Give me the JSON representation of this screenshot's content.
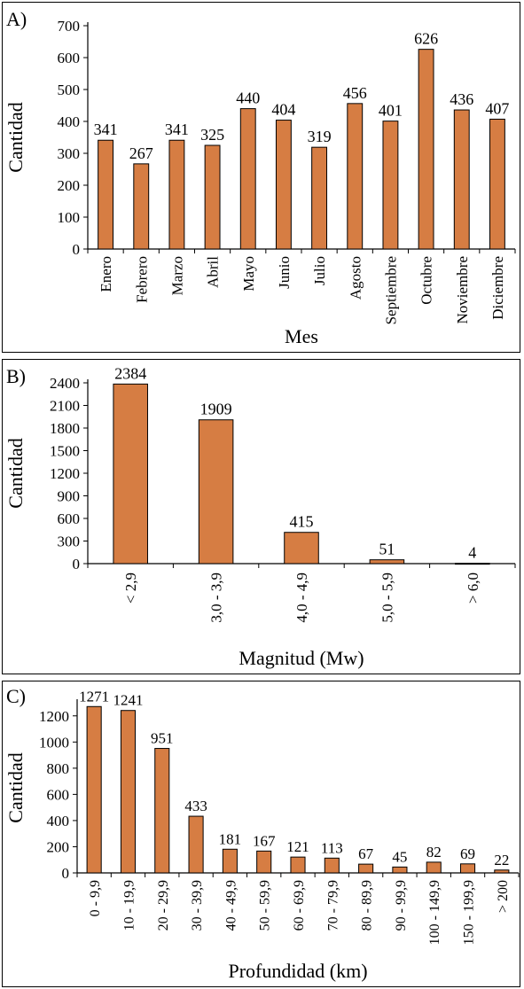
{
  "chart_data": [
    {
      "type": "bar",
      "panel_label": "A)",
      "categories": [
        "Enero",
        "Febrero",
        "Marzo",
        "Abril",
        "Mayo",
        "Junio",
        "Julio",
        "Agosto",
        "Septiembre",
        "Octubre",
        "Noviembre",
        "Diciembre"
      ],
      "values": [
        341,
        267,
        341,
        325,
        440,
        404,
        319,
        456,
        401,
        626,
        436,
        407
      ],
      "xlabel": "Mes",
      "ylabel": "Cantidad",
      "ylim": [
        0,
        700
      ],
      "yticks": [
        0,
        100,
        200,
        300,
        400,
        500,
        600,
        700
      ],
      "grid": false,
      "bar_color": "#d67d43"
    },
    {
      "type": "bar",
      "panel_label": "B)",
      "categories": [
        "< 2,9",
        "3,0 - 3,9",
        "4,0 - 4,9",
        "5,0 - 5,9",
        "> 6,0"
      ],
      "values": [
        2384,
        1909,
        415,
        51,
        4
      ],
      "xlabel": "Magnitud (Mw)",
      "ylabel": "Cantidad",
      "ylim": [
        0,
        2400
      ],
      "yticks": [
        0,
        300,
        600,
        900,
        1200,
        1500,
        1800,
        2100,
        2400
      ],
      "grid": false,
      "bar_color": "#d67d43"
    },
    {
      "type": "bar",
      "panel_label": "C)",
      "categories": [
        "0 - 9,9",
        "10 - 19,9",
        "20 - 29,9",
        "30 - 39,9",
        "40 - 49,9",
        "50 - 59,9",
        "60 - 69,9",
        "70 - 79,9",
        "80 - 89,9",
        "90 - 99,9",
        "100 - 149,9",
        "150 - 199,9",
        "> 200"
      ],
      "values": [
        1271,
        1241,
        951,
        433,
        181,
        167,
        121,
        113,
        67,
        45,
        82,
        69,
        22
      ],
      "xlabel": "Profundidad (km)",
      "ylabel": "Cantidad",
      "ylim": [
        0,
        1300
      ],
      "yticks": [
        0,
        200,
        400,
        600,
        800,
        1000,
        1200
      ],
      "grid": false,
      "bar_color": "#d67d43"
    }
  ]
}
